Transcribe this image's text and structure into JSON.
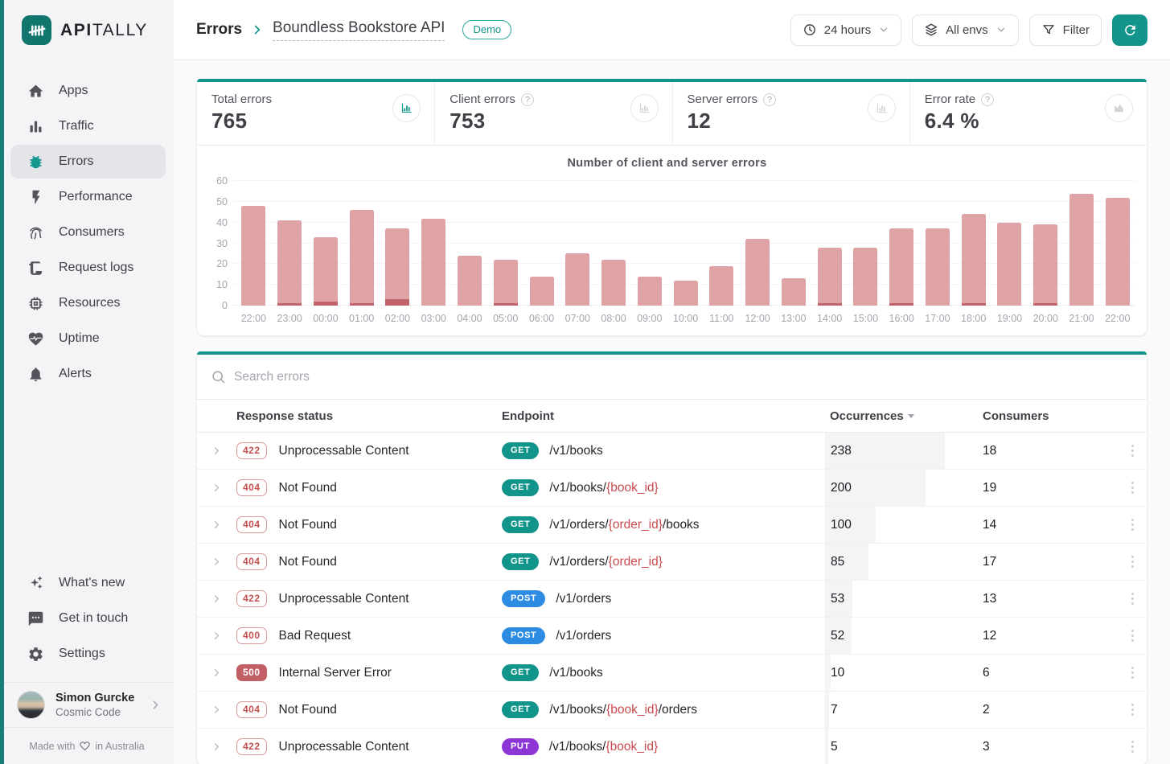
{
  "brand": {
    "name_bold": "API",
    "name_light": "TALLY"
  },
  "sidebar": {
    "items": [
      {
        "icon": "home",
        "label": "Apps"
      },
      {
        "icon": "traffic",
        "label": "Traffic"
      },
      {
        "icon": "bug",
        "label": "Errors",
        "active": true
      },
      {
        "icon": "bolt",
        "label": "Performance"
      },
      {
        "icon": "fingerprint",
        "label": "Consumers"
      },
      {
        "icon": "request-logs",
        "label": "Request logs"
      },
      {
        "icon": "cpu",
        "label": "Resources"
      },
      {
        "icon": "heart-pulse",
        "label": "Uptime"
      },
      {
        "icon": "bell",
        "label": "Alerts"
      }
    ],
    "bottom_items": [
      {
        "icon": "sparkles",
        "label": "What's new"
      },
      {
        "icon": "message",
        "label": "Get in touch"
      },
      {
        "icon": "gear",
        "label": "Settings"
      }
    ],
    "user": {
      "name": "Simon Gurcke",
      "org": "Cosmic Code"
    },
    "footer": {
      "prefix": "Made with",
      "suffix": "in Australia"
    }
  },
  "header": {
    "breadcrumb": {
      "section": "Errors",
      "app": "Boundless Bookstore API",
      "badge": "Demo"
    },
    "controls": {
      "time_range": "24 hours",
      "env": "All envs",
      "filter": "Filter"
    }
  },
  "stats": [
    {
      "label": "Total errors",
      "value": "765",
      "help": false,
      "icon": "chart-bar",
      "icon_active": true
    },
    {
      "label": "Client errors",
      "value": "753",
      "help": true,
      "icon": "chart-bar",
      "icon_active": false
    },
    {
      "label": "Server errors",
      "value": "12",
      "help": true,
      "icon": "chart-bar",
      "icon_active": false
    },
    {
      "label": "Error rate",
      "value": "6.4 %",
      "help": true,
      "icon": "chart-area",
      "icon_active": false
    }
  ],
  "chart_data": {
    "type": "bar",
    "stacked": true,
    "title": "Number of client and server errors",
    "categories": [
      "22:00",
      "23:00",
      "00:00",
      "01:00",
      "02:00",
      "03:00",
      "04:00",
      "05:00",
      "06:00",
      "07:00",
      "08:00",
      "09:00",
      "10:00",
      "11:00",
      "12:00",
      "13:00",
      "14:00",
      "15:00",
      "16:00",
      "17:00",
      "18:00",
      "19:00",
      "20:00",
      "21:00",
      "22:00"
    ],
    "series": [
      {
        "name": "Client errors",
        "color": "#dfa2a5",
        "values": [
          48,
          40,
          31,
          45,
          34,
          42,
          24,
          21,
          14,
          25,
          22,
          14,
          12,
          19,
          32,
          13,
          27,
          28,
          36,
          37,
          43,
          40,
          38,
          54,
          52
        ]
      },
      {
        "name": "Server errors",
        "color": "#c2636b",
        "values": [
          0,
          1,
          2,
          1,
          3,
          0,
          0,
          1,
          0,
          0,
          0,
          0,
          0,
          0,
          0,
          0,
          1,
          0,
          1,
          0,
          1,
          0,
          1,
          0,
          0
        ]
      }
    ],
    "ylim": [
      0,
      60
    ],
    "yticks": [
      0,
      10,
      20,
      30,
      40,
      50,
      60
    ],
    "grid": true,
    "legend": "none"
  },
  "table": {
    "search_placeholder": "Search errors",
    "columns": [
      "Response status",
      "Endpoint",
      "Occurrences",
      "Consumers"
    ],
    "sort_column": "Occurrences",
    "max_occurrences": 238,
    "rows": [
      {
        "code": "422",
        "filled": false,
        "status": "Unprocessable Content",
        "method": "GET",
        "segments": [
          {
            "text": "/v1/books",
            "param": false
          }
        ],
        "occurrences": 238,
        "consumers": 18
      },
      {
        "code": "404",
        "filled": false,
        "status": "Not Found",
        "method": "GET",
        "segments": [
          {
            "text": "/v1/books/",
            "param": false
          },
          {
            "text": "{book_id}",
            "param": true
          }
        ],
        "occurrences": 200,
        "consumers": 19
      },
      {
        "code": "404",
        "filled": false,
        "status": "Not Found",
        "method": "GET",
        "segments": [
          {
            "text": "/v1/orders/",
            "param": false
          },
          {
            "text": "{order_id}",
            "param": true
          },
          {
            "text": "/books",
            "param": false
          }
        ],
        "occurrences": 100,
        "consumers": 14
      },
      {
        "code": "404",
        "filled": false,
        "status": "Not Found",
        "method": "GET",
        "segments": [
          {
            "text": "/v1/orders/",
            "param": false
          },
          {
            "text": "{order_id}",
            "param": true
          }
        ],
        "occurrences": 85,
        "consumers": 17
      },
      {
        "code": "422",
        "filled": false,
        "status": "Unprocessable Content",
        "method": "POST",
        "segments": [
          {
            "text": "/v1/orders",
            "param": false
          }
        ],
        "occurrences": 53,
        "consumers": 13
      },
      {
        "code": "400",
        "filled": false,
        "status": "Bad Request",
        "method": "POST",
        "segments": [
          {
            "text": "/v1/orders",
            "param": false
          }
        ],
        "occurrences": 52,
        "consumers": 12
      },
      {
        "code": "500",
        "filled": true,
        "status": "Internal Server Error",
        "method": "GET",
        "segments": [
          {
            "text": "/v1/books",
            "param": false
          }
        ],
        "occurrences": 10,
        "consumers": 6
      },
      {
        "code": "404",
        "filled": false,
        "status": "Not Found",
        "method": "GET",
        "segments": [
          {
            "text": "/v1/books/",
            "param": false
          },
          {
            "text": "{book_id}",
            "param": true
          },
          {
            "text": "/orders",
            "param": false
          }
        ],
        "occurrences": 7,
        "consumers": 2
      },
      {
        "code": "422",
        "filled": false,
        "status": "Unprocessable Content",
        "method": "PUT",
        "segments": [
          {
            "text": "/v1/books/",
            "param": false
          },
          {
            "text": "{book_id}",
            "param": true
          }
        ],
        "occurrences": 5,
        "consumers": 3
      }
    ]
  },
  "colors": {
    "accent": "#12948b",
    "accent_dark": "#10756c",
    "client_bar": "#dfa2a5",
    "server_bar": "#c2636b",
    "method_get": "#11948a",
    "method_post": "#2d8ce2",
    "method_put": "#8d36d6",
    "status_red": "#c4504f",
    "status_500_bg": "#c25f66"
  }
}
